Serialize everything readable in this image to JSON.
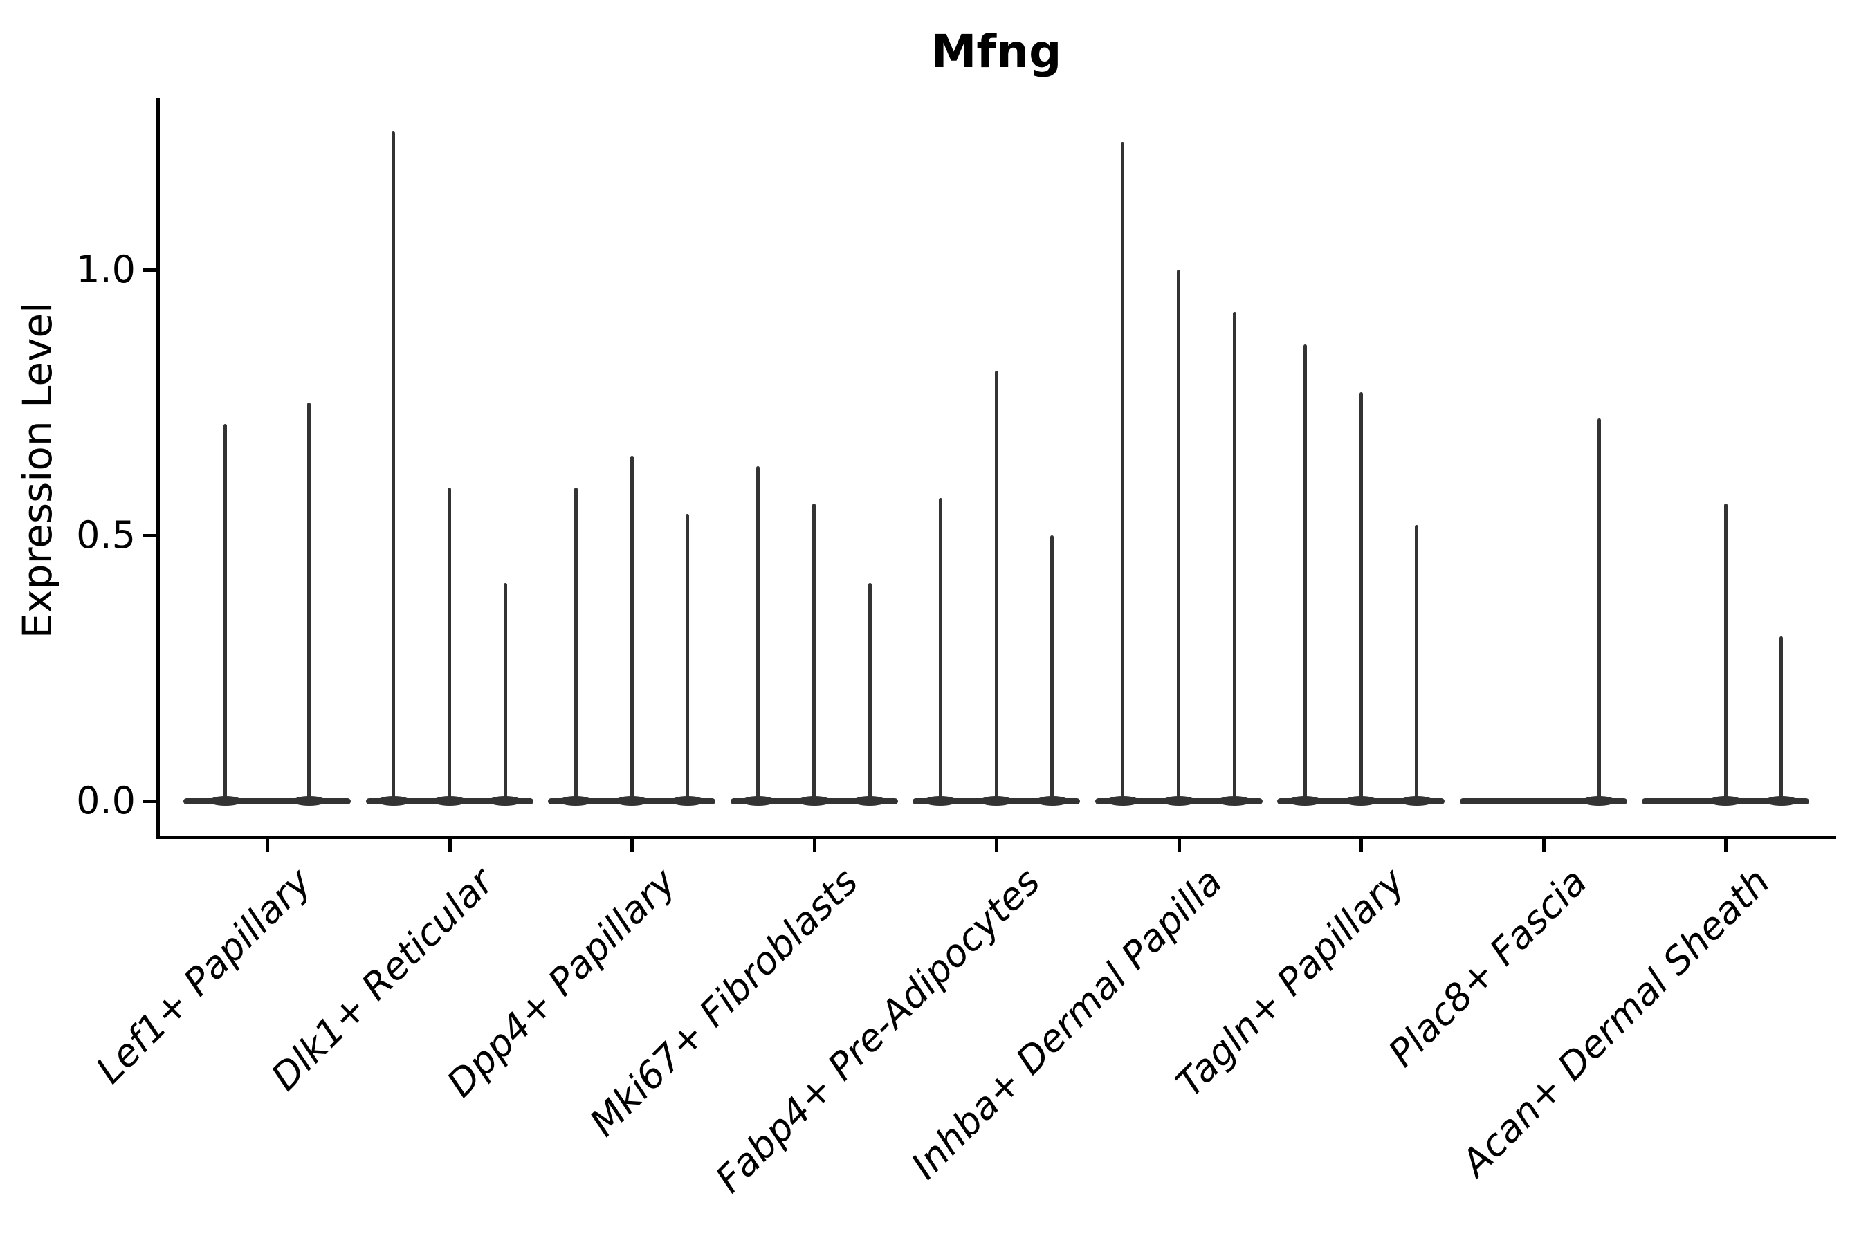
{
  "chart_data": {
    "type": "violin",
    "title": "Mfng",
    "xlabel": "",
    "ylabel": "Expression Level",
    "ytick_labels": [
      "0.0",
      "0.5",
      "1.0"
    ],
    "ytick_values": [
      0.0,
      0.5,
      1.0
    ],
    "ylim": [
      -0.065,
      1.325
    ],
    "grid": false,
    "legend": "none",
    "categories": [
      "Lef1+ Papillary",
      "Dlk1+ Reticular",
      "Dpp4+ Papillary",
      "Mki67+ Fibroblasts",
      "Fabp4+ Pre-Adipocytes",
      "Inhba+ Dermal Papilla",
      "Tagln+ Papillary",
      "Plac8+ Fascia",
      "Acan+ Dermal Sheath"
    ],
    "groups": [
      {
        "category": "Lef1+ Papillary",
        "violin_maxima": [
          0.71,
          0.75
        ]
      },
      {
        "category": "Dlk1+ Reticular",
        "violin_maxima": [
          1.26,
          0.59,
          0.41
        ]
      },
      {
        "category": "Dpp4+ Papillary",
        "violin_maxima": [
          0.59,
          0.65,
          0.54
        ]
      },
      {
        "category": "Mki67+ Fibroblasts",
        "violin_maxima": [
          0.63,
          0.56,
          0.41
        ]
      },
      {
        "category": "Fabp4+ Pre-Adipocytes",
        "violin_maxima": [
          0.57,
          0.81,
          0.5
        ]
      },
      {
        "category": "Inhba+ Dermal Papilla",
        "violin_maxima": [
          1.24,
          1.0,
          0.92
        ]
      },
      {
        "category": "Tagln+ Papillary",
        "violin_maxima": [
          0.86,
          0.77,
          0.52
        ]
      },
      {
        "category": "Plac8+ Fascia",
        "violin_maxima": [
          0.0,
          0.0,
          0.72
        ]
      },
      {
        "category": "Acan+ Dermal Sheath",
        "violin_maxima": [
          0.0,
          0.56,
          0.31
        ]
      }
    ],
    "colors": {
      "violin_line": "#333333",
      "axis": "#000000",
      "text": "#000000",
      "background": "#ffffff"
    }
  }
}
